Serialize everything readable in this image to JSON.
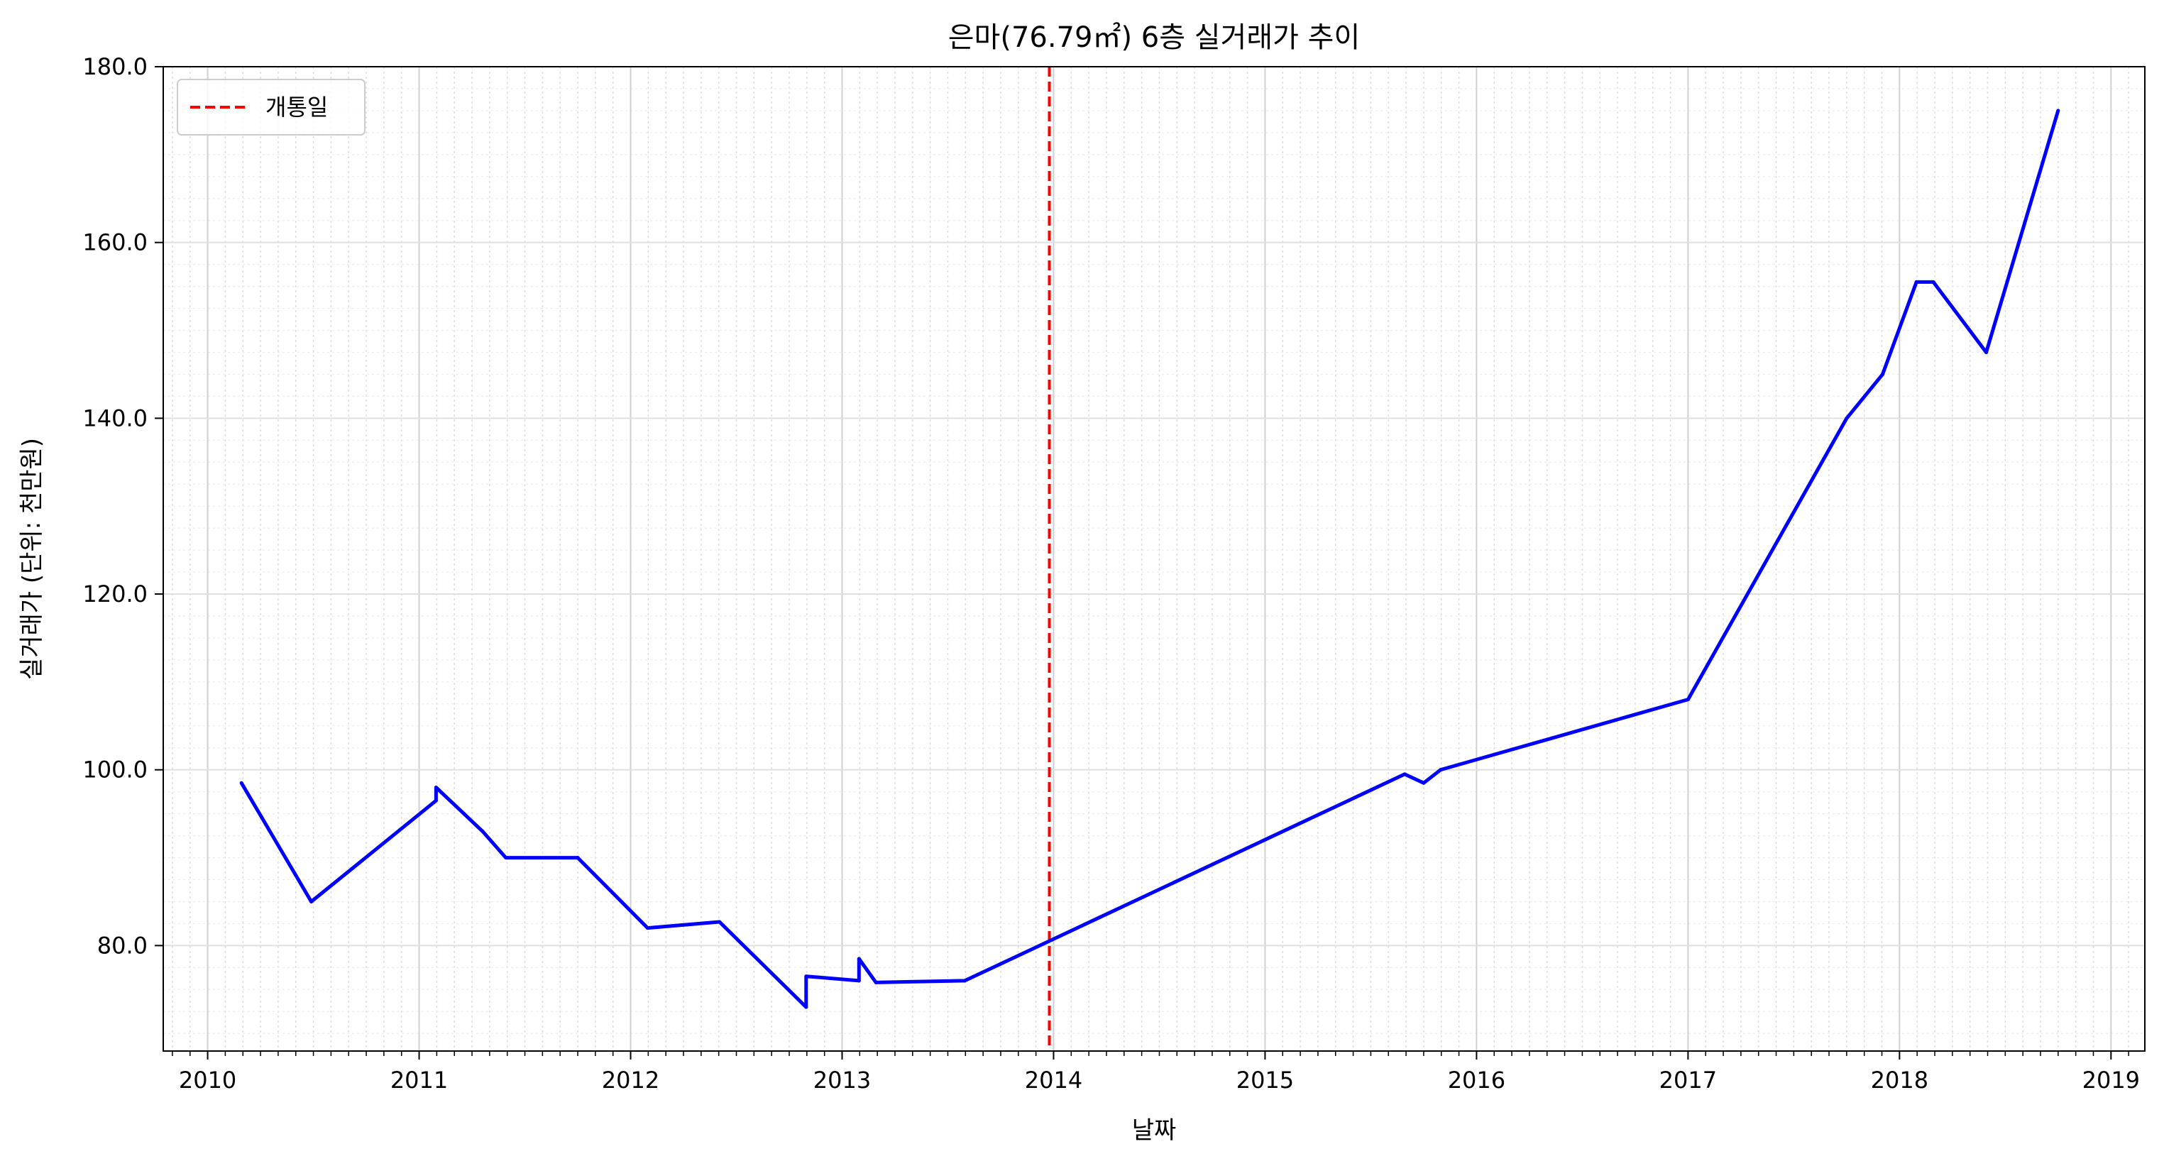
{
  "chart_data": {
    "type": "line",
    "title": "은마(76.79㎡) 6층 실거래가 추이",
    "xlabel": "날짜",
    "ylabel": "실거래가 (단위: 천만원)",
    "xlim": [
      2009.79,
      2019.16
    ],
    "ylim": [
      68,
      180
    ],
    "x_ticks": [
      2010,
      2011,
      2012,
      2013,
      2014,
      2015,
      2016,
      2017,
      2018,
      2019
    ],
    "y_ticks": [
      80.0,
      100.0,
      120.0,
      140.0,
      160.0,
      180.0
    ],
    "y_tick_labels": [
      "80.0",
      "100.0",
      "120.0",
      "140.0",
      "160.0",
      "180.0"
    ],
    "grid": true,
    "legend_position": "top-left",
    "series": [
      {
        "color": "#0000ff",
        "x": [
          2010.16,
          2010.49,
          2011.08,
          2011.08,
          2011.3,
          2011.41,
          2011.75,
          2012.08,
          2012.42,
          2012.83,
          2012.83,
          2013.08,
          2013.08,
          2013.16,
          2013.58,
          2015.66,
          2015.75,
          2015.83,
          2017.0,
          2017.75,
          2017.92,
          2018.08,
          2018.16,
          2018.41,
          2018.75
        ],
        "y": [
          98.5,
          85.0,
          96.5,
          98.0,
          93.0,
          90.0,
          90.0,
          82.0,
          82.7,
          73.0,
          76.5,
          76.0,
          78.5,
          75.8,
          76.0,
          99.5,
          98.5,
          100.0,
          108.0,
          140.0,
          145.0,
          155.5,
          155.5,
          147.5,
          175.0
        ]
      }
    ],
    "reference_lines": [
      {
        "name": "개통일",
        "x": 2013.98,
        "color": "#ff0000",
        "style": "dashed"
      }
    ],
    "legend": [
      {
        "label": "개통일",
        "color": "#ff0000",
        "style": "dashed"
      }
    ]
  }
}
